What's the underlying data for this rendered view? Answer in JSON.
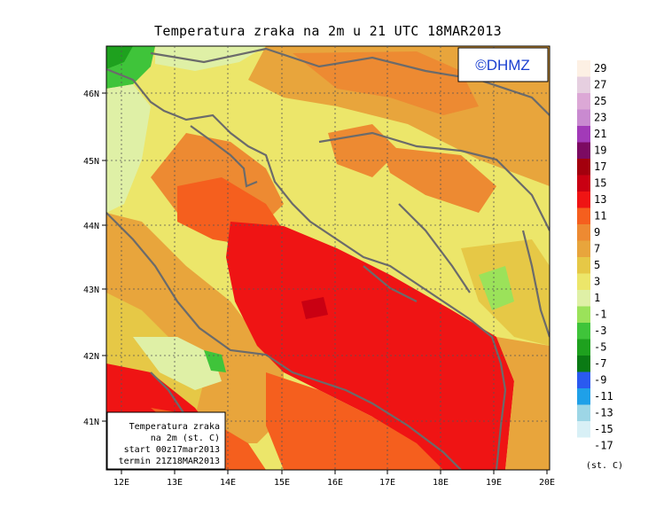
{
  "title": "Temperatura zraka na 2m u 21 UTC 18MAR2013",
  "copyright": "©DHMZ",
  "info_box": {
    "line1": "Temperatura zraka",
    "line2": "na 2m (st. C)",
    "line3": "start 00z17mar2013",
    "line4": "termin 21Z18MAR2013"
  },
  "legend_unit": "(st. C)",
  "axes": {
    "lon_ticks": [
      "12E",
      "13E",
      "14E",
      "15E",
      "16E",
      "17E",
      "18E",
      "19E",
      "20E"
    ],
    "lat_ticks": [
      "46N",
      "45N",
      "44N",
      "43N",
      "42N",
      "41N"
    ]
  },
  "legend": [
    {
      "label": "29",
      "color": "#fdf0e4"
    },
    {
      "label": "27",
      "color": "#e6cfe0"
    },
    {
      "label": "25",
      "color": "#dca8d6"
    },
    {
      "label": "23",
      "color": "#c98ad0"
    },
    {
      "label": "21",
      "color": "#a23ab8"
    },
    {
      "label": "19",
      "color": "#7c0a62"
    },
    {
      "label": "17",
      "color": "#a3000d"
    },
    {
      "label": "15",
      "color": "#c90012"
    },
    {
      "label": "13",
      "color": "#ef1414"
    },
    {
      "label": "11",
      "color": "#f55f1e"
    },
    {
      "label": "9",
      "color": "#ed8a32"
    },
    {
      "label": "7",
      "color": "#e8a53c"
    },
    {
      "label": "5",
      "color": "#e6c846"
    },
    {
      "label": "3",
      "color": "#ece66a"
    },
    {
      "label": "1",
      "color": "#dff0a6"
    },
    {
      "label": "-1",
      "color": "#9be25a"
    },
    {
      "label": "-3",
      "color": "#3fc43a"
    },
    {
      "label": "-5",
      "color": "#1ea11e"
    },
    {
      "label": "-7",
      "color": "#0a7a14"
    },
    {
      "label": "-9",
      "color": "#2a5af0"
    },
    {
      "label": "-11",
      "color": "#1fa0e8"
    },
    {
      "label": "-13",
      "color": "#9dd6e6"
    },
    {
      "label": "-15",
      "color": "#d8f0f6"
    },
    {
      "label": "-17",
      "color": "#ffffff"
    }
  ],
  "colors": {
    "sea_warm": "#ef1414",
    "sea_mid": "#f55f1e",
    "land_warm": "#ed8a32",
    "land_mid": "#e8a53c",
    "land_cool": "#e6c846",
    "land_cold": "#ece66a",
    "coast": "#6b6b6b"
  }
}
